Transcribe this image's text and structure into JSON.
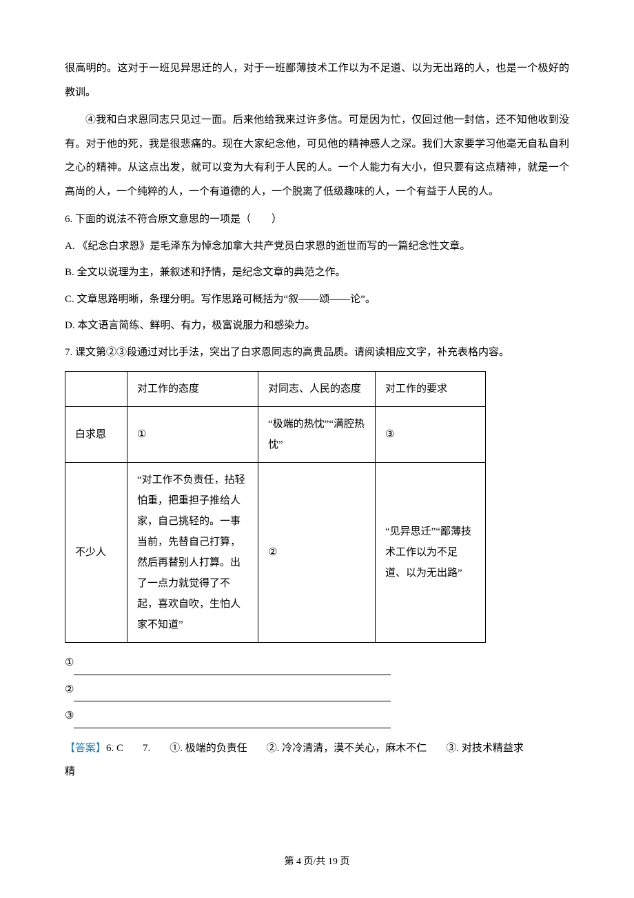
{
  "paragraphs": {
    "p1": "很高明的。这对于一班见异思迁的人，对于一班鄙薄技术工作以为不足道、以为无出路的人，也是一个极好的教训。",
    "p2": "④我和白求恩同志只见过一面。后来他给我来过许多信。可是因为忙，仅回过他一封信，还不知他收到没有。对于他的死，我是很悲痛的。现在大家纪念他，可见他的精神感人之深。我们大家要学习他毫无自私自利之心的精神。从这点出发，就可以变为大有利于人民的人。一个人能力有大小，但只要有这点精神，就是一个高尚的人，一个纯粹的人，一个有道德的人，一个脱离了低级趣味的人，一个有益于人民的人。"
  },
  "q6": {
    "stem": "6.  下面的说法不符合原文意思的一项是（　　）",
    "A": "A.  《纪念白求恩》是毛泽东为悼念加拿大共产党员白求恩的逝世而写的一篇纪念性文章。",
    "B": "B.  全文以说理为主，兼叙述和抒情，是纪念文章的典范之作。",
    "C": "C.  文章思路明晰，条理分明。写作思路可概括为“叙——颂——论”。",
    "D": "D.  本文语言简练、鲜明、有力，极富说服力和感染力。"
  },
  "q7_stem": "7.  课文第②③段通过对比手法，突出了白求恩同志的高贵品质。请阅读相应文字，补充表格内容。",
  "table": {
    "header": {
      "c1": "",
      "c2": "对工作的态度",
      "c3": "对同志、人民的态度",
      "c4": "对工作的要求"
    },
    "row1": {
      "c1": "白求恩",
      "c2": "①",
      "c3": "“极端的热忱”“满腔热忱”",
      "c4": "③"
    },
    "row2": {
      "c1": "不少人",
      "c2": "“对工作不负责任，拈轻怕重，把重担子推给人家，自己挑轻的。一事当前，先替自己打算，然后再替别人打算。出了一点力就觉得了不起，喜欢自吹，生怕人家不知道”",
      "c3": "②",
      "c4": "“见异思迁”“鄙薄技术工作以为不足道、以为无出路”"
    }
  },
  "blanks": {
    "b1": "①",
    "b2": "②",
    "b3": "③"
  },
  "answer": {
    "label": "【答案】",
    "p1": "6. C",
    "p2": "7.",
    "a1": "①. 极端的负责任",
    "a2": "②. 冷冷清清，漠不关心，麻木不仁",
    "a3": "③. 对技术精益求",
    "tail": "精"
  },
  "footer": "第 4 页/共 19 页"
}
